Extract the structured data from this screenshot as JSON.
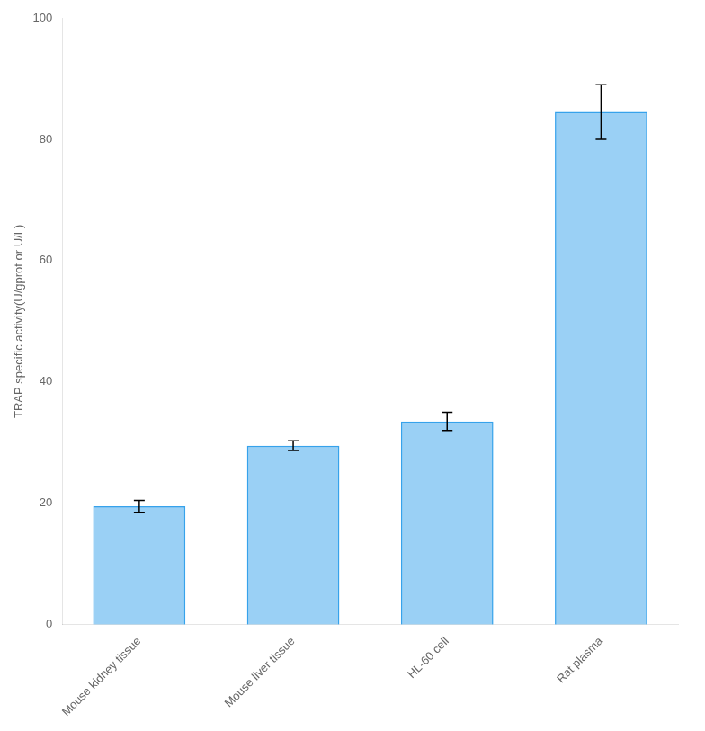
{
  "chart_data": {
    "type": "bar",
    "categories": [
      "Mouse kidney tissue",
      "Mouse liver tissue",
      "HL-60 cell",
      "Rat plasma"
    ],
    "values": [
      19.5,
      29.5,
      33.5,
      84.5
    ],
    "errors": [
      1.0,
      0.8,
      1.5,
      4.5
    ],
    "ylabel": "TRAP specific activity(U/gprot or U/L)",
    "ylim": [
      0,
      100
    ],
    "yticks": [
      0,
      20,
      40,
      60,
      80,
      100
    ],
    "grid": false
  }
}
